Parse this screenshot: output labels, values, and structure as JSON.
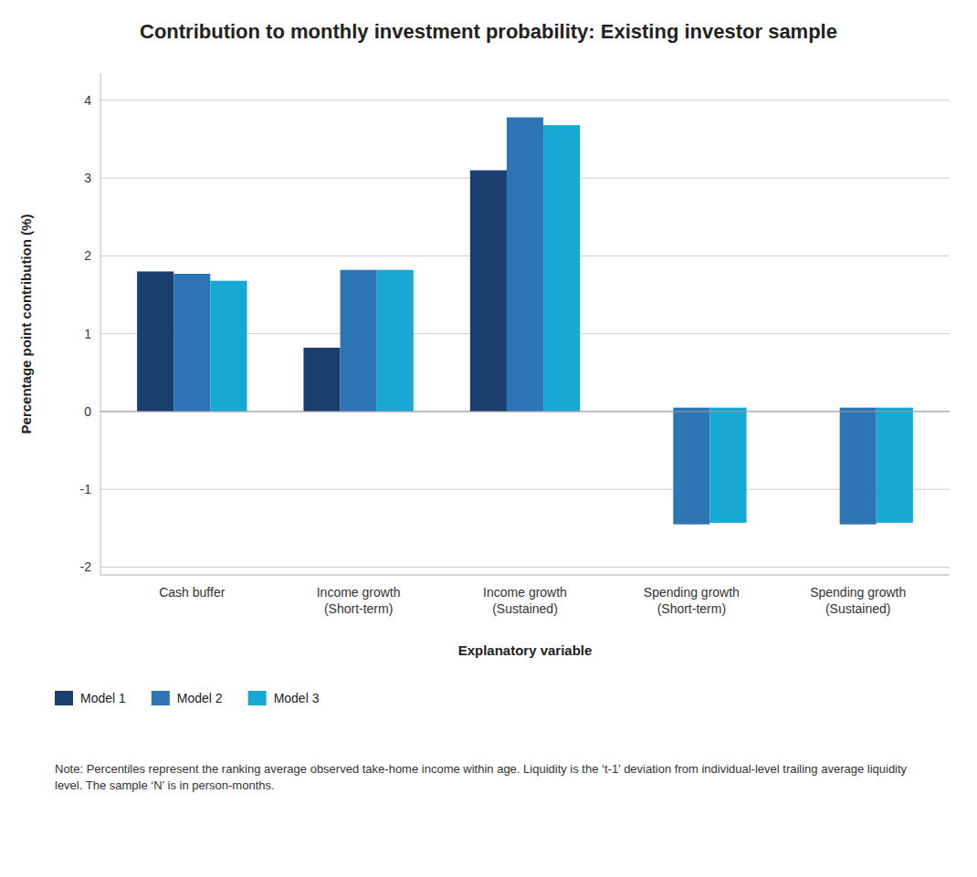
{
  "chart_data": {
    "type": "bar",
    "title": "Contribution to monthly investment probability: Existing investor sample",
    "x_label": "Explanatory variable",
    "y_label": "Percentage point contribution (%)",
    "categories": [
      "Cash buffer",
      "Income growth\n(Short-term)",
      "Income growth\n(Sustained)",
      "Spending growth\n(Short-term)",
      "Spending growth\n(Sustained)"
    ],
    "series": [
      {
        "name": "Model 1",
        "color": "#1a3f6f",
        "values": [
          1.8,
          0.82,
          3.1,
          0.0,
          0.0
        ],
        "values_neg": [
          0.0,
          0.0,
          0.0,
          0.0,
          0.0
        ]
      },
      {
        "name": "Model 2",
        "color": "#2e75b6",
        "values": [
          1.77,
          1.82,
          3.78,
          0.05,
          0.05
        ],
        "values_neg": [
          0.0,
          0.0,
          0.0,
          -1.45,
          -1.45
        ]
      },
      {
        "name": "Model 3",
        "color": "#17a8d4",
        "values": [
          1.68,
          1.82,
          3.68,
          0.05,
          0.05
        ],
        "values_neg": [
          0.0,
          0.0,
          0.0,
          -1.43,
          -1.43
        ]
      }
    ],
    "ylim": [
      -2.1,
      4.35
    ],
    "yticks": [
      -2,
      -1,
      0,
      1,
      2,
      3,
      4
    ],
    "grid": true,
    "legend": "bottom",
    "note": "Note: Percentiles represent the ranking average observed take-home income within age. Liquidity is the ‘t-1’ deviation from individual-level trailing average liquidity level. The sample ‘N’ is in person-months."
  }
}
